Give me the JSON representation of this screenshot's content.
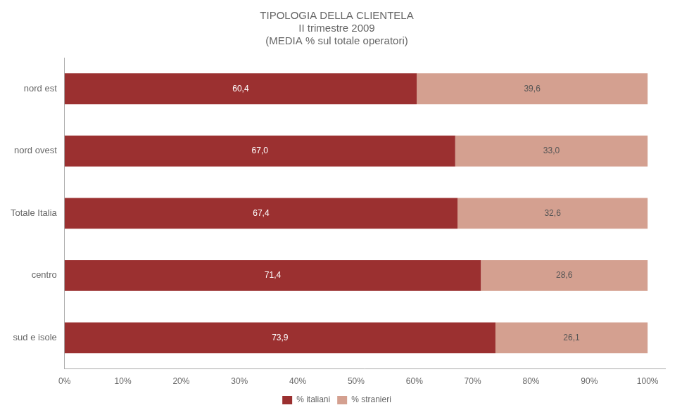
{
  "chart_data": {
    "type": "bar",
    "title": "TIPOLOGIA DELLA CLIENTELA\nII trimestre 2009\n(MEDIA % sul totale operatori)",
    "orientation": "horizontal",
    "stacked": true,
    "data_labels": true,
    "grid": false,
    "legend": "bottom",
    "categories": [
      "nord est",
      "nord ovest",
      "Totale Italia",
      "centro",
      "sud e isole"
    ],
    "series": [
      {
        "name": "% italiani",
        "color": "#9B3030",
        "values": [
          60.4,
          67.0,
          67.4,
          71.4,
          73.9
        ],
        "value_labels": [
          "60,4",
          "67,0",
          "67,4",
          "71,4",
          "73,9"
        ]
      },
      {
        "name": "% stranieri",
        "color": "#D4A090",
        "values": [
          39.6,
          33.0,
          32.6,
          28.6,
          26.1
        ],
        "value_labels": [
          "39,6",
          "33,0",
          "32,6",
          "28,6",
          "26,1"
        ]
      }
    ],
    "xlim": [
      0,
      103
    ],
    "xticks": [
      {
        "value": 0,
        "label": "0%"
      },
      {
        "value": 10,
        "label": "10%"
      },
      {
        "value": 20,
        "label": "20%"
      },
      {
        "value": 30,
        "label": "30%"
      },
      {
        "value": 40,
        "label": "40%"
      },
      {
        "value": 50,
        "label": "50%"
      },
      {
        "value": 60,
        "label": "60%"
      },
      {
        "value": 70,
        "label": "70%"
      },
      {
        "value": 80,
        "label": "80%"
      },
      {
        "value": 90,
        "label": "90%"
      },
      {
        "value": 100,
        "label": "100%"
      }
    ]
  }
}
